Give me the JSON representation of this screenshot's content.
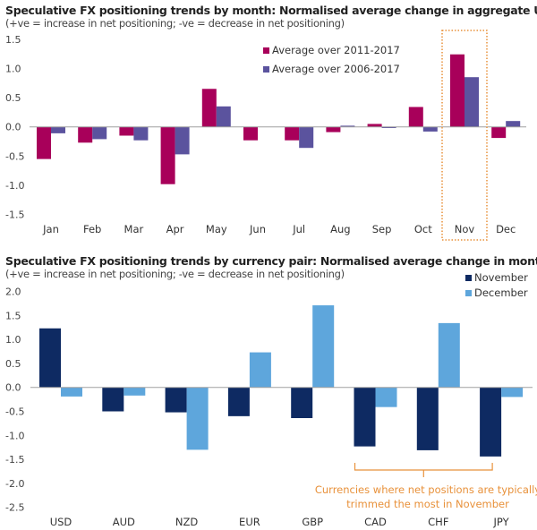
{
  "chart_data": [
    {
      "type": "bar",
      "title": "Speculative FX positioning trends by month: Normalised average change in aggregate USD contracts",
      "subtitle": "(+ve = increase in net positioning; -ve = decrease in net positioning)",
      "xlabel": "",
      "ylabel": "",
      "ylim": [
        -1.5,
        1.5
      ],
      "yticks": [
        "1.5",
        "1.0",
        "0.5",
        "0.0",
        "-0.5",
        "-1.0",
        "-1.5"
      ],
      "ytick_values": [
        1.5,
        1.0,
        0.5,
        0.0,
        -0.5,
        -1.0,
        -1.5
      ],
      "grid": false,
      "legend_position": "top-right",
      "categories": [
        "Jan",
        "Feb",
        "Mar",
        "Apr",
        "May",
        "Jun",
        "Jul",
        "Aug",
        "Sep",
        "Oct",
        "Nov",
        "Dec"
      ],
      "series": [
        {
          "name": "Average over 2011-2017",
          "color": "#a8005a",
          "values": [
            -0.55,
            -0.27,
            -0.15,
            -0.98,
            0.65,
            -0.23,
            -0.23,
            -0.09,
            0.05,
            0.34,
            1.24,
            -0.19
          ]
        },
        {
          "name": "Average over 2006-2017",
          "color": "#5b539e",
          "values": [
            -0.11,
            -0.21,
            -0.23,
            -0.47,
            0.35,
            0.0,
            -0.36,
            0.02,
            -0.02,
            -0.08,
            0.85,
            0.1
          ]
        }
      ],
      "highlight": {
        "category": "Nov",
        "style": "dotted-box",
        "color": "#e8913a"
      }
    },
    {
      "type": "bar",
      "title": "Speculative FX positioning trends by currency pair: Normalised average change in month",
      "subtitle": "(+ve = increase in net positioning; -ve = decrease in net positioning)",
      "xlabel": "",
      "ylabel": "",
      "ylim": [
        -2.5,
        2.0
      ],
      "yticks": [
        "2.0",
        "1.5",
        "1.0",
        "0.5",
        "0.0",
        "-0.5",
        "-1.0",
        "-1.5",
        "-2.0",
        "-2.5"
      ],
      "ytick_values": [
        2.0,
        1.5,
        1.0,
        0.5,
        0.0,
        -0.5,
        -1.0,
        -1.5,
        -2.0,
        -2.5
      ],
      "grid": false,
      "legend_position": "top-right",
      "categories": [
        "USD",
        "AUD",
        "NZD",
        "EUR",
        "GBP",
        "CAD",
        "CHF",
        "JPY"
      ],
      "series": [
        {
          "name": "November",
          "color": "#0e2a62",
          "values": [
            1.23,
            -0.5,
            -0.52,
            -0.6,
            -0.64,
            -1.23,
            -1.31,
            -1.44
          ]
        },
        {
          "name": "December",
          "color": "#5ea6dc",
          "values": [
            -0.19,
            -0.17,
            -1.3,
            0.73,
            1.71,
            -0.41,
            1.34,
            -0.2
          ]
        }
      ],
      "annotation": {
        "lines": [
          "Currencies where net positions are typically",
          "trimmed the most in November"
        ],
        "spans_categories": [
          "CAD",
          "JPY"
        ],
        "color": "#e8913a"
      }
    }
  ]
}
